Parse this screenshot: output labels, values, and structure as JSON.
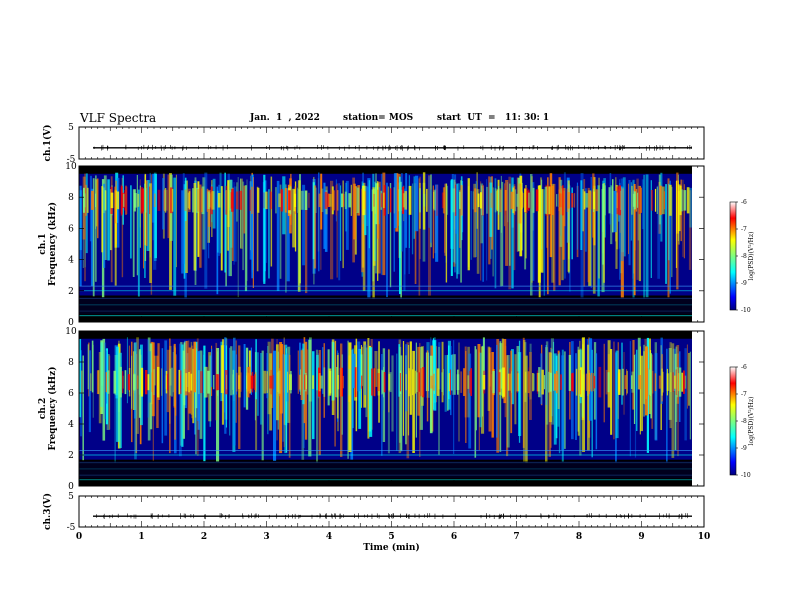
{
  "header": {
    "title": "VLF Spectra",
    "date": "Jan.  1  , 2022",
    "station": "station= MOS",
    "start": "start  UT  =   11: 30: 1"
  },
  "chart_data": [
    {
      "type": "line",
      "panel": "ch1-voltage",
      "ylabel": "ch.1(V)",
      "ylim": [
        -5,
        5
      ],
      "yticks": [
        "5",
        "-5"
      ],
      "xlim": [
        0,
        10
      ],
      "series": [
        {
          "values": [
            -1.5
          ]
        }
      ]
    },
    {
      "type": "heatmap",
      "panel": "ch1-spectrogram",
      "ylabel": "ch.1\nFrequency (kHz)",
      "ylim": [
        0,
        10
      ],
      "yticks": [
        "0",
        "2",
        "4",
        "6",
        "8",
        "10"
      ],
      "xlim": [
        0,
        10
      ],
      "colorbar": {
        "label": "log(PSD)(V²/Hz)",
        "ticks": [
          "-6",
          "-7",
          "-8",
          "-9",
          "-10"
        ],
        "range": [
          -10,
          -6
        ]
      }
    },
    {
      "type": "heatmap",
      "panel": "ch2-spectrogram",
      "ylabel": "ch.2\nFrequency (kHz)",
      "ylim": [
        0,
        10
      ],
      "yticks": [
        "0",
        "2",
        "4",
        "6",
        "8",
        "10"
      ],
      "xlim": [
        0,
        10
      ],
      "colorbar": {
        "label": "log(PSD)(V²/Hz)",
        "ticks": [
          "-6",
          "-7",
          "-8",
          "-9",
          "-10"
        ],
        "range": [
          -10,
          -6
        ]
      }
    },
    {
      "type": "line",
      "panel": "ch3-voltage",
      "ylabel": "ch.3(V)",
      "ylim": [
        -5,
        5
      ],
      "yticks": [
        "5",
        "-5"
      ],
      "xlim": [
        0,
        10
      ],
      "xlabel": "Time  (min)",
      "xticks": [
        "0",
        "1",
        "2",
        "3",
        "4",
        "5",
        "6",
        "7",
        "8",
        "9",
        "10"
      ],
      "series": [
        {
          "values": [
            -1.5
          ]
        }
      ]
    }
  ],
  "colors": {
    "jet": [
      "#00007f",
      "#0000ff",
      "#007fff",
      "#00ffff",
      "#7fff7f",
      "#ffff00",
      "#ff7f00",
      "#ff0000",
      "#7f0000"
    ],
    "background": "#000000",
    "axis": "#000000"
  }
}
